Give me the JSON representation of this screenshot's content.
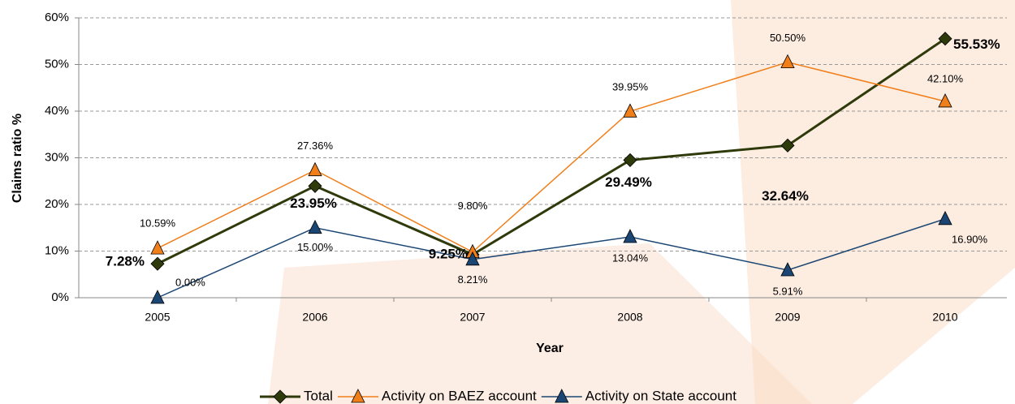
{
  "chart_data": {
    "type": "line",
    "x_label": "Year",
    "y_label": "Claims ratio %",
    "categories": [
      "2005",
      "2006",
      "2007",
      "2008",
      "2009",
      "2010"
    ],
    "series": [
      {
        "name": "Total",
        "color": "#2e3a0a",
        "marker": "diamond",
        "values": [
          7.28,
          23.95,
          9.25,
          29.49,
          32.64,
          55.53
        ],
        "value_labels": [
          "7.28%",
          "23.95%",
          "9.25%",
          "29.49%",
          "32.64%",
          "55.53%"
        ]
      },
      {
        "name": "Activity on BAEZ account",
        "color": "#f07f1a",
        "marker": "triangle",
        "values": [
          10.59,
          27.36,
          9.8,
          39.95,
          50.5,
          42.1
        ],
        "value_labels": [
          "10.59%",
          "27.36%",
          "9.80%",
          "39.95%",
          "50.50%",
          "42.10%"
        ]
      },
      {
        "name": "Activity on State account",
        "color": "#1b4673",
        "marker": "triangle",
        "values": [
          0,
          15,
          8.21,
          13.04,
          5.91,
          16.9
        ],
        "value_labels": [
          "0.00%",
          "15.00%",
          "8.21%",
          "13.04%",
          "5.91%",
          "16.90%"
        ]
      }
    ],
    "ylim": [
      0,
      60
    ],
    "yticks": [
      {
        "value": 0,
        "label": "0%"
      },
      {
        "value": 10,
        "label": "10%"
      },
      {
        "value": 20,
        "label": "20%"
      },
      {
        "value": 30,
        "label": "30%"
      },
      {
        "value": 40,
        "label": "40%"
      },
      {
        "value": 50,
        "label": "50%"
      },
      {
        "value": 60,
        "label": "60%"
      }
    ],
    "grid": true,
    "legend": "bottom"
  }
}
